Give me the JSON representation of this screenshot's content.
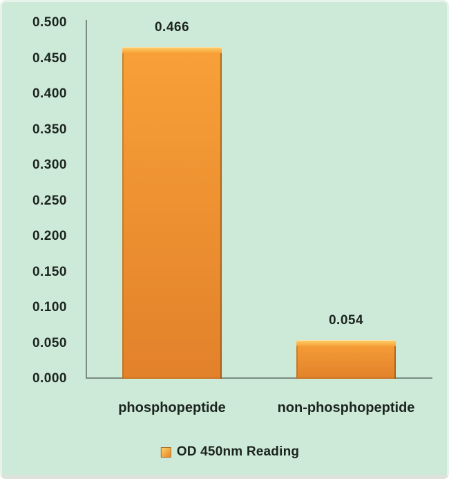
{
  "chart_data": {
    "type": "bar",
    "title": "",
    "xlabel": "",
    "ylabel": "",
    "categories": [
      "phosphopeptide",
      "non-phosphopeptide"
    ],
    "series": [
      {
        "name": "OD 450nm Reading",
        "values": [
          0.466,
          0.054
        ]
      }
    ],
    "value_labels": [
      "0.466",
      "0.054"
    ],
    "yticks": [
      "0.500",
      "0.450",
      "0.400",
      "0.350",
      "0.300",
      "0.250",
      "0.200",
      "0.150",
      "0.100",
      "0.050",
      "0.000"
    ],
    "ylim": [
      0,
      0.5
    ],
    "grid": false,
    "legend": "OD 450nm Reading",
    "legend_position": "bottom"
  },
  "colors": {
    "background": "#cde9d7",
    "frame_border": "#e7f3ea",
    "axis_line": "#7b8b80",
    "text": "#1b241e",
    "bar_highlight": "#fbd26c",
    "bar_gradient_top": "#f8a038",
    "bar_gradient_bottom": "#e2812a",
    "bar_edge": "#a96a1c"
  }
}
